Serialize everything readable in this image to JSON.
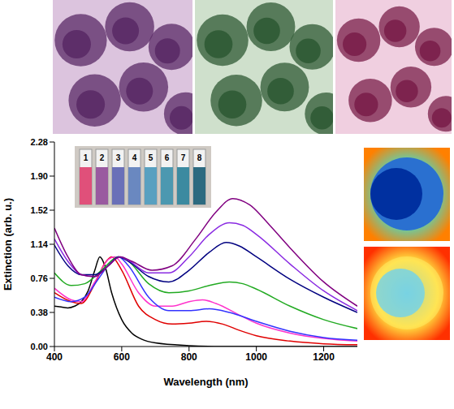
{
  "chart_data": {
    "type": "line",
    "x_label": "Wavelength (nm)",
    "y_label": "Extinction (arb. u.)",
    "xlim": [
      400,
      1300
    ],
    "xticks": [
      400,
      600,
      800,
      1000,
      1200
    ],
    "ylim": [
      0,
      2.28
    ],
    "yticks": [
      {
        "value": 0,
        "label": "0.00"
      },
      0.38,
      0.76,
      1.14,
      1.52,
      {
        "value": 1.9,
        "label": "1.90"
      },
      2.28
    ],
    "grid": false,
    "annotations": [
      "1",
      "2",
      "3",
      "4",
      "5",
      "6",
      "7",
      "8"
    ],
    "series": [
      {
        "color": "#000000",
        "x": [
          400,
          420,
          440,
          460,
          480,
          500,
          520,
          535,
          550,
          570,
          600,
          630,
          660,
          700,
          800,
          900,
          1000,
          1100,
          1200,
          1300
        ],
        "values": [
          0.45,
          0.44,
          0.43,
          0.45,
          0.5,
          0.62,
          0.85,
          1.0,
          0.9,
          0.6,
          0.3,
          0.15,
          0.08,
          0.04,
          0.01,
          0,
          0,
          0,
          0,
          0
        ]
      },
      {
        "color": "#e00000",
        "x": [
          400,
          450,
          480,
          520,
          550,
          570,
          600,
          650,
          700,
          750,
          800,
          850,
          900,
          950,
          1000,
          1100,
          1200,
          1300
        ],
        "values": [
          0.6,
          0.5,
          0.48,
          0.7,
          0.93,
          1.0,
          0.85,
          0.45,
          0.3,
          0.25,
          0.26,
          0.28,
          0.25,
          0.18,
          0.12,
          0.06,
          0.03,
          0.02
        ]
      },
      {
        "color": "#ff33cc",
        "x": [
          400,
          450,
          480,
          520,
          560,
          580,
          600,
          650,
          700,
          750,
          800,
          840,
          880,
          950,
          1000,
          1100,
          1200,
          1300
        ],
        "values": [
          0.65,
          0.52,
          0.5,
          0.72,
          0.97,
          1.0,
          0.92,
          0.6,
          0.45,
          0.45,
          0.5,
          0.52,
          0.48,
          0.35,
          0.26,
          0.15,
          0.09,
          0.06
        ]
      },
      {
        "color": "#3333ff",
        "x": [
          400,
          450,
          490,
          530,
          570,
          590,
          620,
          680,
          740,
          800,
          860,
          920,
          1000,
          1100,
          1200,
          1300
        ],
        "values": [
          0.55,
          0.5,
          0.55,
          0.75,
          0.95,
          1.0,
          0.9,
          0.55,
          0.4,
          0.4,
          0.42,
          0.38,
          0.28,
          0.17,
          0.1,
          0.07
        ]
      },
      {
        "color": "#22aa22",
        "x": [
          400,
          450,
          490,
          540,
          590,
          620,
          680,
          740,
          800,
          860,
          920,
          960,
          1000,
          1100,
          1200,
          1300
        ],
        "values": [
          0.82,
          0.68,
          0.7,
          0.85,
          1.0,
          0.95,
          0.7,
          0.6,
          0.62,
          0.68,
          0.72,
          0.7,
          0.64,
          0.45,
          0.3,
          0.2
        ]
      },
      {
        "color": "#000080",
        "x": [
          400,
          440,
          480,
          520,
          560,
          590,
          620,
          680,
          740,
          800,
          860,
          910,
          950,
          1000,
          1100,
          1200,
          1300
        ],
        "values": [
          1.13,
          0.9,
          0.8,
          0.8,
          0.9,
          1.0,
          0.95,
          0.78,
          0.72,
          0.85,
          1.05,
          1.16,
          1.12,
          1.0,
          0.75,
          0.55,
          0.38
        ]
      },
      {
        "color": "#8a2be2",
        "x": [
          400,
          440,
          480,
          520,
          560,
          595,
          620,
          680,
          740,
          800,
          860,
          920,
          960,
          1000,
          1100,
          1200,
          1300
        ],
        "values": [
          1.2,
          0.95,
          0.8,
          0.78,
          0.9,
          1.0,
          0.96,
          0.82,
          0.82,
          1.0,
          1.25,
          1.38,
          1.35,
          1.25,
          0.92,
          0.62,
          0.4
        ]
      },
      {
        "color": "#800080",
        "x": [
          400,
          440,
          480,
          520,
          560,
          595,
          630,
          690,
          750,
          820,
          880,
          930,
          980,
          1040,
          1100,
          1200,
          1300
        ],
        "values": [
          1.32,
          1.0,
          0.8,
          0.78,
          0.9,
          1.0,
          0.95,
          0.85,
          0.9,
          1.2,
          1.5,
          1.65,
          1.58,
          1.35,
          1.1,
          0.72,
          0.45
        ]
      }
    ]
  }
}
